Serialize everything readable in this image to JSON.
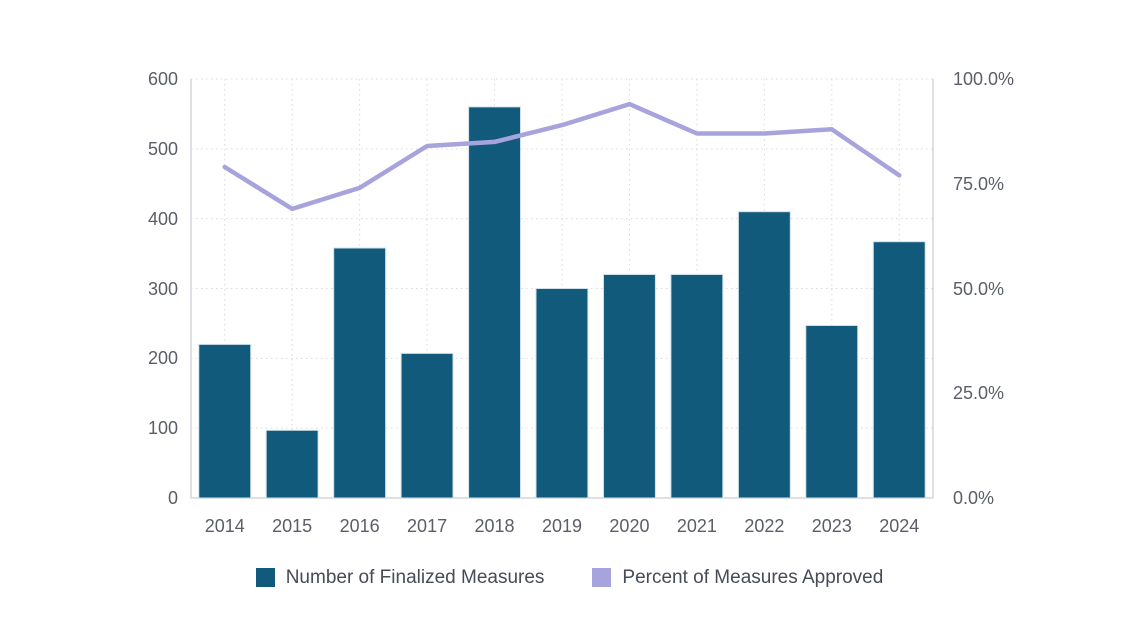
{
  "page": {
    "background_color": "#ffffff"
  },
  "chart_data": {
    "type": "bar+line",
    "title": "",
    "categories": [
      "2014",
      "2015",
      "2016",
      "2017",
      "2018",
      "2019",
      "2020",
      "2021",
      "2022",
      "2023",
      "2024"
    ],
    "series": [
      {
        "name": "Number of Finalized Measures",
        "type": "bar",
        "axis": "left",
        "color": "#115a7c",
        "values": [
          220,
          97,
          358,
          207,
          560,
          300,
          320,
          320,
          410,
          247,
          367
        ]
      },
      {
        "name": "Percent of Measures Approved",
        "type": "line",
        "axis": "right",
        "color": "#a7a3dc",
        "values": [
          79,
          69,
          74,
          84,
          85,
          89,
          94,
          87,
          87,
          88,
          77
        ]
      }
    ],
    "left_axis": {
      "min": 0,
      "max": 600,
      "tick_values": [
        600,
        500,
        400,
        300,
        200,
        100,
        0
      ],
      "tick_labels": [
        "600",
        "500",
        "400",
        "300",
        "200",
        "100",
        "0"
      ]
    },
    "right_axis": {
      "min": 0,
      "max": 100,
      "tick_values": [
        100,
        75,
        50,
        25,
        0
      ],
      "tick_labels": [
        "100.0%",
        "75.0%",
        "50.0%",
        "25.0%",
        "0.0%"
      ]
    },
    "grid": {
      "horizontal": true,
      "vertical": true,
      "style": "dotted",
      "color": "#dadade"
    },
    "axis_line_color": "#d6d6dc",
    "legend_position": "bottom-center"
  }
}
